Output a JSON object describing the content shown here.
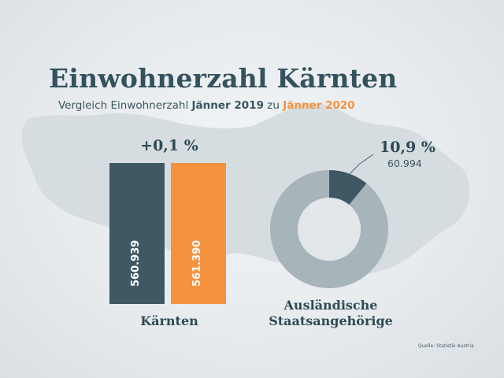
{
  "header": {
    "title": "Einwohnerzahl Kärnten",
    "subtitle_prefix": "Vergleich Einwohnerzahl ",
    "subtitle_year_a": "Jänner 2019",
    "subtitle_mid": " zu ",
    "subtitle_year_b": "Jänner 2020"
  },
  "colors": {
    "title": "#34525e",
    "bar_2019": "#3f5863",
    "bar_2020": "#f5923e",
    "donut_highlight": "#3f5863",
    "donut_rest": "#a7b5bb",
    "map_fill": "#d6dde1"
  },
  "footer": {
    "source": "Quelle: Statistik Austria"
  },
  "chart_data": [
    {
      "type": "bar",
      "title": "Kärnten",
      "annotation": "+0,1 %",
      "categories": [
        "Jänner 2019",
        "Jänner 2020"
      ],
      "values": [
        560939,
        561390
      ],
      "value_labels": [
        "560.939",
        "561.390"
      ],
      "colors": [
        "#3f5863",
        "#f5923e"
      ]
    },
    {
      "type": "pie",
      "style": "donut",
      "title": "Ausländische Staatsangehörige",
      "title_lines": [
        "Ausländische",
        "Staatsangehörige"
      ],
      "highlight_percent": 10.9,
      "highlight_label": "10,9 %",
      "highlight_value_label": "60.994",
      "colors": [
        "#3f5863",
        "#a7b5bb"
      ]
    }
  ]
}
